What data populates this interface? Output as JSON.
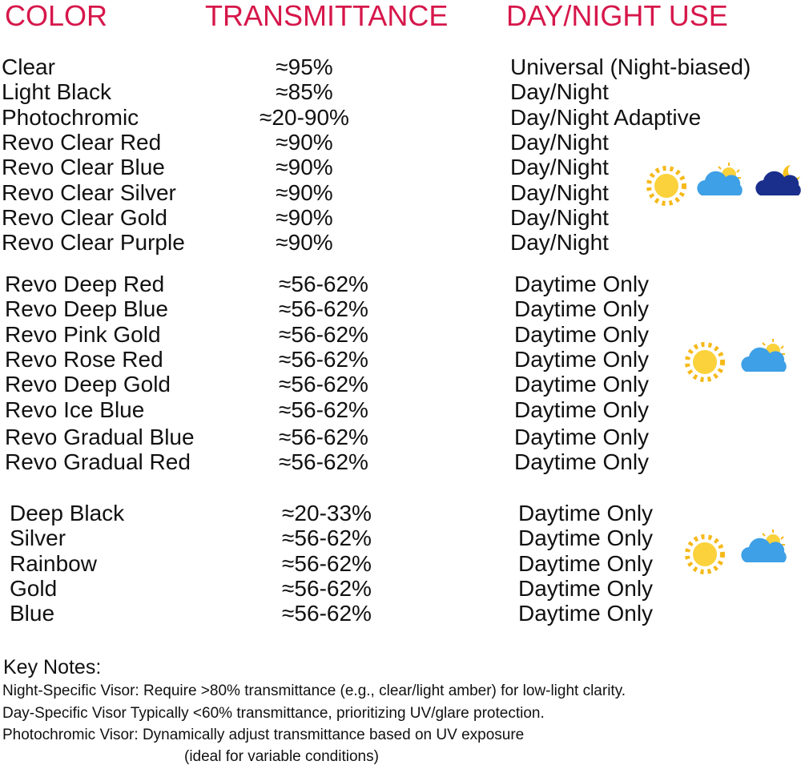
{
  "header": {
    "columns": [
      "COLOR",
      "TRANSMITTANCE",
      "DAY/NIGHT USE"
    ]
  },
  "groups": [
    {
      "rows": [
        [
          "Clear",
          "≈95%",
          "Universal (Night-biased)"
        ],
        [
          "Light Black",
          "≈85%",
          "Day/Night"
        ],
        [
          "Photochromic",
          "≈20-90%",
          "Day/Night Adaptive"
        ],
        [
          "Revo Clear Red",
          "≈90%",
          "Day/Night"
        ],
        [
          "Revo Clear Blue",
          "≈90%",
          "Day/Night"
        ],
        [
          "Revo Clear Silver",
          "≈90%",
          "Day/Night"
        ],
        [
          "Revo Clear Gold",
          "≈90%",
          "Day/Night"
        ],
        [
          "Revo Clear Purple",
          "≈90%",
          "Day/Night"
        ]
      ]
    },
    {
      "rows": [
        [
          "Revo Deep Red",
          "≈56-62%",
          "Daytime Only"
        ],
        [
          "Revo Deep Blue",
          "≈56-62%",
          "Daytime Only"
        ],
        [
          "Revo Pink Gold",
          "≈56-62%",
          "Daytime Only"
        ],
        [
          "Revo Rose Red",
          "≈56-62%",
          "Daytime Only"
        ],
        [
          "Revo Deep Gold",
          "≈56-62%",
          "Daytime Only"
        ],
        [
          "Revo Ice Blue",
          "≈56-62%",
          "Daytime Only"
        ],
        [
          "Revo Gradual Blue",
          "≈56-62%",
          "Daytime Only"
        ],
        [
          "Revo Gradual Red",
          "≈56-62%",
          "Daytime Only"
        ]
      ]
    },
    {
      "rows": [
        [
          "Deep Black",
          "≈20-33%",
          "Daytime Only"
        ],
        [
          "Silver",
          "≈56-62%",
          "Daytime Only"
        ],
        [
          "Rainbow",
          "≈56-62%",
          "Daytime Only"
        ],
        [
          "Gold",
          "≈56-62%",
          "Daytime Only"
        ],
        [
          "Blue",
          "≈56-62%",
          "Daytime Only"
        ]
      ]
    }
  ],
  "notes": {
    "title": "Key Notes:",
    "lines": [
      "Night-Specific Visor: Require >80% transmittance (e.g., clear/light amber) for low-light clarity.",
      "Day-Specific Visor Typically <60% transmittance, prioritizing UV/glare protection.",
      "Photochromic Visor: Dynamically adjust transmittance based on UV exposure",
      "(ideal for variable conditions)"
    ]
  }
}
